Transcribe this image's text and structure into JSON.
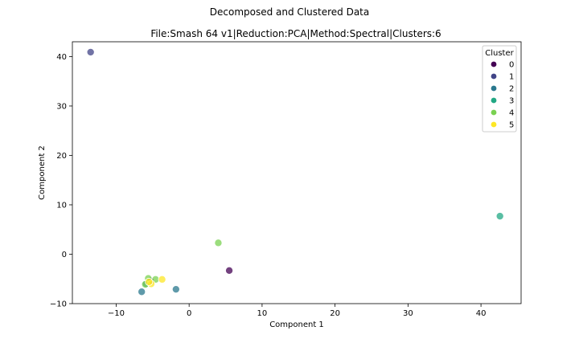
{
  "figure": {
    "suptitle": "Decomposed and Clustered Data"
  },
  "chart_data": {
    "type": "scatter",
    "title": "File:Smash 64 v1|Reduction:PCA|Method:Spectral|Clusters:6",
    "xlabel": "Component 1",
    "ylabel": "Component 2",
    "xlim": [
      -16.0,
      45.5
    ],
    "ylim": [
      -10.0,
      43.0
    ],
    "xticks": [
      -10,
      0,
      10,
      20,
      30,
      40
    ],
    "yticks": [
      -10,
      0,
      10,
      20,
      30,
      40
    ],
    "grid": false,
    "legend": {
      "title": "Cluster",
      "placement": "top-right"
    },
    "series": [
      {
        "name": "0",
        "color": "#440154",
        "points": [
          [
            5.5,
            -3.3
          ],
          [
            -5.3,
            -5.4
          ]
        ]
      },
      {
        "name": "1",
        "color": "#414487",
        "points": [
          [
            -13.5,
            40.9
          ]
        ]
      },
      {
        "name": "2",
        "color": "#2a788e",
        "points": [
          [
            -1.8,
            -7.1
          ],
          [
            -6.5,
            -7.6
          ],
          [
            -5.9,
            -6.0
          ]
        ]
      },
      {
        "name": "3",
        "color": "#22a884",
        "points": [
          [
            42.6,
            7.7
          ]
        ]
      },
      {
        "name": "4",
        "color": "#7ad151",
        "points": [
          [
            4.0,
            2.3
          ],
          [
            -5.6,
            -4.9
          ],
          [
            -4.6,
            -5.1
          ],
          [
            -6.0,
            -6.1
          ]
        ]
      },
      {
        "name": "5",
        "color": "#fde725",
        "points": [
          [
            -3.7,
            -5.1
          ],
          [
            -5.2,
            -6.0
          ],
          [
            -5.5,
            -5.6
          ]
        ]
      }
    ]
  }
}
